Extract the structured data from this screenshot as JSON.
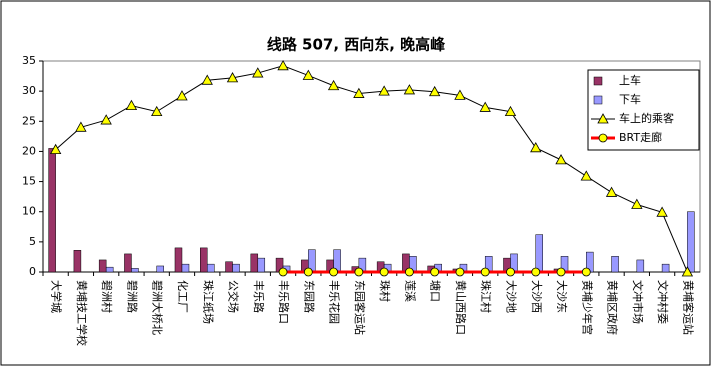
{
  "chart_data": {
    "type": "bar",
    "title": "线路 507, 西向东, 晚高峰",
    "categories": [
      "大学城",
      "黄埔技工学校",
      "碧洲村",
      "碧洲路",
      "碧洲大桥北",
      "化工厂",
      "珠江纸场",
      "公交场",
      "丰乐路",
      "丰乐路口",
      "东园路",
      "丰乐花园",
      "东园客运站",
      "珠村",
      "莲溪",
      "塘口",
      "黄山西路口",
      "珠江村",
      "大沙地",
      "大沙西",
      "大沙东",
      "黄埔少年宫",
      "黄埔区政府",
      "文冲市场",
      "文冲村委",
      "黄埔客运站"
    ],
    "series": [
      {
        "name": "上车",
        "type": "bar",
        "color": "#993366",
        "values": [
          20.5,
          3.6,
          2,
          3,
          0,
          4,
          4,
          1.7,
          3,
          2.3,
          2,
          2,
          0.9,
          1.7,
          3,
          1,
          0.5,
          0,
          2.3,
          0,
          0.5,
          0,
          0,
          0,
          0,
          0
        ]
      },
      {
        "name": "下车",
        "type": "bar",
        "color": "#9999ff",
        "values": [
          0,
          0,
          0.8,
          0.6,
          1,
          1.3,
          1.3,
          1.3,
          2.3,
          1,
          3.7,
          3.7,
          2.3,
          1.3,
          2.6,
          1.3,
          1.3,
          2.6,
          3,
          6.2,
          2.6,
          3.3,
          2.6,
          2,
          1.3,
          10
        ]
      },
      {
        "name": "车上的乘客",
        "type": "line",
        "color": "#000000",
        "marker": "triangle",
        "marker_color": "#ffff00",
        "values": [
          20.3,
          24,
          25.2,
          27.6,
          26.6,
          29.2,
          31.8,
          32.2,
          33,
          34.2,
          32.6,
          30.9,
          29.6,
          30,
          30.2,
          29.9,
          29.3,
          27.3,
          26.6,
          20.6,
          18.6,
          15.9,
          13.2,
          11.2,
          9.9,
          0
        ]
      },
      {
        "name": "BRT走廊",
        "type": "line",
        "color": "#ff0000",
        "marker": "circle",
        "marker_color": "#ffff00",
        "values": [
          null,
          null,
          null,
          null,
          null,
          null,
          null,
          null,
          null,
          0,
          0,
          0,
          0,
          0,
          0,
          0,
          0,
          0,
          0,
          0,
          0,
          0,
          null,
          null,
          null,
          null
        ]
      }
    ],
    "ylim": [
      0,
      35
    ],
    "yticks": [
      0,
      5,
      10,
      15,
      20,
      25,
      30,
      35
    ],
    "grid": false
  }
}
